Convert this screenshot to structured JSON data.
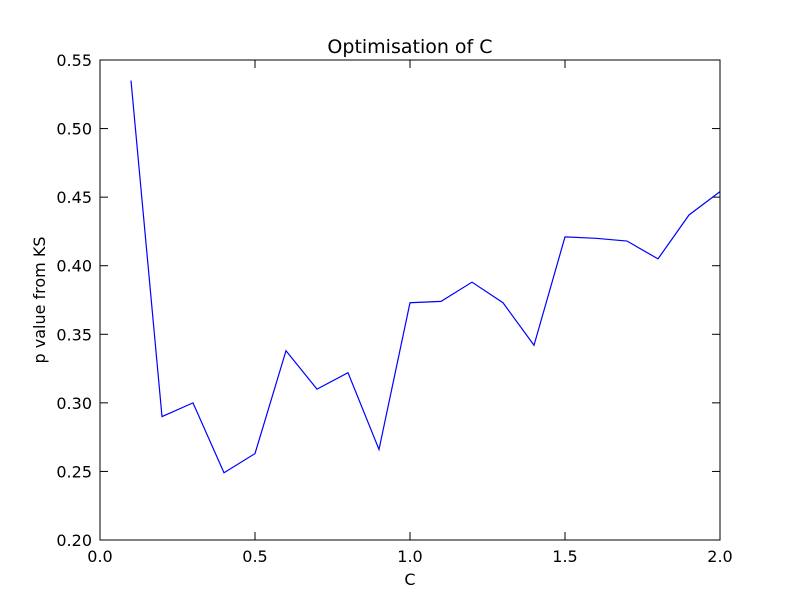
{
  "chart_data": {
    "type": "line",
    "title": "Optimisation of C",
    "xlabel": "C",
    "ylabel": "p value from KS",
    "xlim": [
      0.0,
      2.0
    ],
    "ylim": [
      0.2,
      0.55
    ],
    "x_ticks": [
      0.0,
      0.5,
      1.0,
      1.5,
      2.0
    ],
    "x_tick_labels": [
      "0.0",
      "0.5",
      "1.0",
      "1.5",
      "2.0"
    ],
    "y_ticks": [
      0.2,
      0.25,
      0.3,
      0.35,
      0.4,
      0.45,
      0.5,
      0.55
    ],
    "y_tick_labels": [
      "0.20",
      "0.25",
      "0.30",
      "0.35",
      "0.40",
      "0.45",
      "0.50",
      "0.55"
    ],
    "grid": false,
    "series": [
      {
        "color": "#0000ff",
        "x": [
          0.1,
          0.2,
          0.3,
          0.4,
          0.5,
          0.6,
          0.7,
          0.8,
          0.9,
          1.0,
          1.1,
          1.2,
          1.3,
          1.4,
          1.5,
          1.6,
          1.7,
          1.8,
          1.9,
          2.0
        ],
        "y": [
          0.535,
          0.29,
          0.3,
          0.249,
          0.263,
          0.338,
          0.31,
          0.322,
          0.266,
          0.373,
          0.374,
          0.388,
          0.373,
          0.342,
          0.421,
          0.42,
          0.418,
          0.405,
          0.437,
          0.454
        ]
      }
    ]
  }
}
